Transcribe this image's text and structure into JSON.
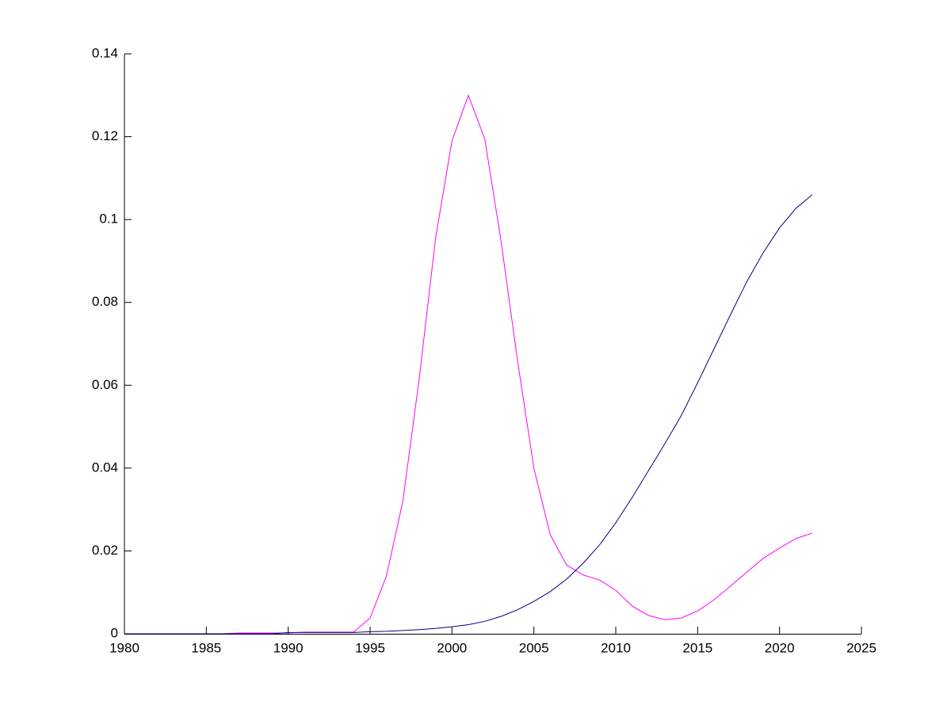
{
  "chart_data": {
    "type": "line",
    "x": [
      1980,
      1981,
      1982,
      1983,
      1984,
      1985,
      1986,
      1987,
      1988,
      1989,
      1990,
      1991,
      1992,
      1993,
      1994,
      1995,
      1996,
      1997,
      1998,
      1999,
      2000,
      2001,
      2002,
      2003,
      2004,
      2005,
      2006,
      2007,
      2008,
      2009,
      2010,
      2011,
      2012,
      2013,
      2014,
      2015,
      2016,
      2017,
      2018,
      2019,
      2020,
      2021,
      2022
    ],
    "series": [
      {
        "color": "#ff00ff",
        "values": [
          0,
          0,
          0,
          0,
          0,
          0,
          0,
          0.0002,
          0.0002,
          0.0002,
          0.0002,
          0.0004,
          0.0004,
          0.0004,
          0.0004,
          0.0038,
          0.014,
          0.032,
          0.0616,
          0.0956,
          0.119,
          0.13,
          0.1195,
          0.0947,
          0.066,
          0.04,
          0.0239,
          0.0166,
          0.0142,
          0.013,
          0.0105,
          0.0067,
          0.0044,
          0.0034,
          0.0038,
          0.0055,
          0.0082,
          0.0115,
          0.0149,
          0.0182,
          0.0207,
          0.023,
          0.0243
        ]
      },
      {
        "color": "#000080",
        "values": [
          0,
          0,
          0,
          0,
          0,
          0,
          0,
          0,
          0,
          0,
          0.0003,
          0.0003,
          0.0003,
          0.0003,
          0.0003,
          0.0005,
          0.0006,
          0.0008,
          0.001,
          0.0013,
          0.0017,
          0.0022,
          0.003,
          0.0042,
          0.0058,
          0.0078,
          0.0102,
          0.0132,
          0.017,
          0.0214,
          0.0268,
          0.0329,
          0.0394,
          0.0459,
          0.0527,
          0.0606,
          0.0688,
          0.077,
          0.085,
          0.092,
          0.098,
          0.1027,
          0.106
        ]
      }
    ],
    "xlim": [
      1980,
      2025
    ],
    "xticks": [
      1980,
      1985,
      1990,
      1995,
      2000,
      2005,
      2010,
      2015,
      2020,
      2025
    ],
    "ylim": [
      0,
      0.14
    ],
    "yticks": [
      0,
      0.02,
      0.04,
      0.06,
      0.08,
      0.1,
      0.12,
      0.14
    ]
  }
}
